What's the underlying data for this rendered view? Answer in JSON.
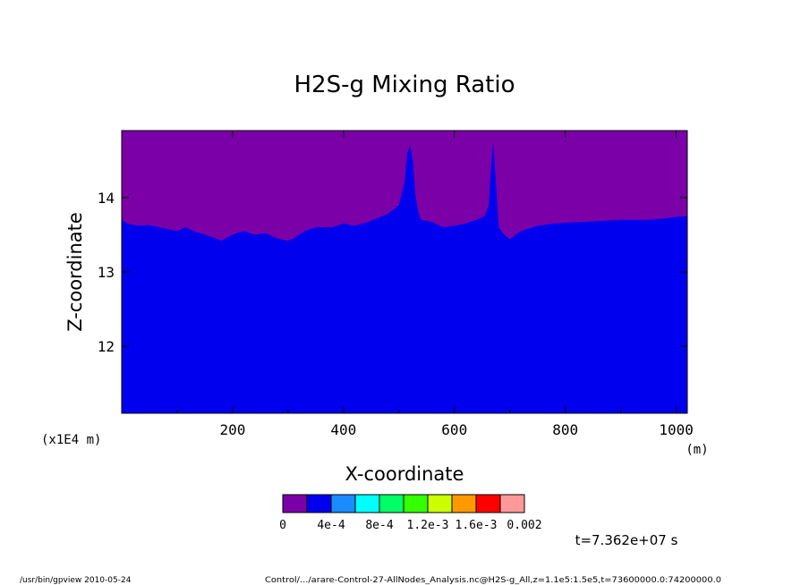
{
  "chart_data": {
    "type": "area",
    "title": "H2S-g Mixing Ratio",
    "xlabel": "X-coordinate",
    "ylabel": "Z-coordinate",
    "x_unit": "(m)",
    "y_unit": "(x1E4 m)",
    "xlim": [
      0,
      1020
    ],
    "ylim": [
      11.1,
      14.9
    ],
    "x_ticks": [
      200,
      400,
      600,
      800,
      1000
    ],
    "y_ticks": [
      12,
      13,
      14
    ],
    "colorbar": {
      "colors": [
        "#7b00a8",
        "#0000ee",
        "#1a8cff",
        "#00ffff",
        "#00ff66",
        "#33ff00",
        "#ccff00",
        "#ff9900",
        "#ff0000",
        "#ff9999"
      ],
      "labels": [
        "0",
        "4e-4",
        "8e-4",
        "1.2e-3",
        "1.6e-3",
        "0.002"
      ]
    },
    "boundary": {
      "x": [
        0,
        10,
        30,
        50,
        80,
        100,
        115,
        130,
        150,
        170,
        180,
        200,
        220,
        240,
        260,
        280,
        300,
        310,
        330,
        350,
        380,
        400,
        420,
        440,
        460,
        480,
        500,
        510,
        515,
        520,
        525,
        530,
        535,
        540,
        560,
        580,
        600,
        620,
        640,
        655,
        662,
        665,
        670,
        675,
        680,
        690,
        700,
        720,
        750,
        780,
        800,
        850,
        900,
        950,
        980,
        1000,
        1020
      ],
      "z": [
        13.7,
        13.65,
        13.62,
        13.63,
        13.58,
        13.55,
        13.6,
        13.55,
        13.5,
        13.45,
        13.42,
        13.5,
        13.55,
        13.5,
        13.52,
        13.45,
        13.42,
        13.45,
        13.55,
        13.6,
        13.6,
        13.65,
        13.62,
        13.66,
        13.72,
        13.78,
        13.9,
        14.2,
        14.6,
        14.7,
        14.5,
        14.0,
        13.8,
        13.7,
        13.67,
        13.6,
        13.62,
        13.65,
        13.7,
        13.75,
        13.9,
        14.3,
        14.75,
        14.2,
        13.6,
        13.5,
        13.44,
        13.55,
        13.62,
        13.65,
        13.66,
        13.68,
        13.7,
        13.7,
        13.72,
        13.74,
        13.75
      ]
    },
    "below_level_color": "#0000ee",
    "above_level_color": "#7b00a8"
  },
  "time_label": "t=7.362e+07 s",
  "footer_left": "/usr/bin/gpview  2010-05-24",
  "footer_right": "Control/.../arare-Control-27-AllNodes_Analysis.nc@H2S-g_All,z=1.1e5:1.5e5,t=73600000.0:74200000.0"
}
